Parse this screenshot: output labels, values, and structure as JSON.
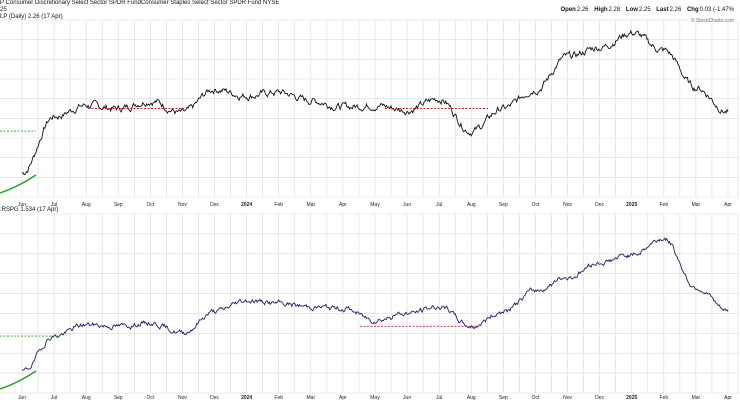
{
  "header": {
    "line1": "P Consumer Discretionary Select Sector SPDR FundConsumer Staples Select Sector SPDR Fund NYSE",
    "line2": "25",
    "panel1_label": "LP (Daily) 2.26 (17 Apr)",
    "panel2_label": ":RSPG 1.534 (17 Apr)",
    "watermark": "© StockCharts.com"
  },
  "ohlc": [
    {
      "label": "Open",
      "value": "2.26"
    },
    {
      "label": "High",
      "value": "2.28"
    },
    {
      "label": "Low",
      "value": "2.25"
    },
    {
      "label": "Last",
      "value": "2.26"
    },
    {
      "label": "Chg",
      "value": "0.03 (-1.47%"
    }
  ],
  "colors": {
    "price_line": "#111111",
    "ratio_line": "#1f1f6e",
    "red_dashed": "#cc2222",
    "green_dashed": "#22a022",
    "green_curve": "#22a022",
    "grid": "#d9d9d9"
  },
  "chart_data": [
    {
      "type": "line",
      "title": "LP (Daily) 2.26 (17 Apr)",
      "x": [
        "Jun",
        "Jul",
        "Aug",
        "Sep",
        "Oct",
        "Nov",
        "Dec",
        "2024",
        "Feb",
        "Mar",
        "Apr",
        "May",
        "Jun",
        "Jul",
        "Aug",
        "Sep",
        "Oct",
        "Nov",
        "Dec",
        "2025",
        "Feb",
        "Mar",
        "Apr"
      ],
      "x_tick_labels": [
        "Jun",
        "Jul",
        "Aug",
        "Sep",
        "Oct",
        "Nov",
        "Dec",
        "2024",
        "Feb",
        "Mar",
        "Apr",
        "May",
        "Jun",
        "Jul",
        "Aug",
        "Sep",
        "Oct",
        "Nov",
        "Dec",
        "2025",
        "Feb",
        "Mar",
        "Apr"
      ],
      "bold_tick_labels": [
        "2024",
        "2025"
      ],
      "series": [
        {
          "values": [
            0.1,
            0.45,
            0.52,
            0.5,
            0.55,
            0.47,
            0.62,
            0.58,
            0.6,
            0.55,
            0.51,
            0.52,
            0.49,
            0.56,
            0.36,
            0.5,
            0.62,
            0.82,
            0.88,
            0.97,
            0.86,
            0.63,
            0.48
          ]
        }
      ],
      "ylim": [
        0,
        1
      ],
      "grid": true
    },
    {
      "type": "line",
      "title": ":RSPG 1.534 (17 Apr)",
      "x": [
        "Jun",
        "Jul",
        "Aug",
        "Sep",
        "Oct",
        "Nov",
        "Dec",
        "2024",
        "Feb",
        "Mar",
        "Apr",
        "May",
        "Jun",
        "Jul",
        "Aug",
        "Sep",
        "Oct",
        "Nov",
        "Dec",
        "2025",
        "Feb",
        "Mar",
        "Apr"
      ],
      "x_tick_labels": [
        "Jun",
        "Jul",
        "Aug",
        "Sep",
        "Oct",
        "Nov",
        "Dec",
        "2024",
        "Feb",
        "Mar",
        "Apr",
        "May",
        "Jun",
        "Jul",
        "Aug",
        "Sep",
        "Oct",
        "Nov",
        "Dec",
        "2025",
        "Feb",
        "Mar",
        "Apr"
      ],
      "bold_tick_labels": [
        "2024",
        "2025"
      ],
      "series": [
        {
          "values": [
            0.08,
            0.3,
            0.37,
            0.36,
            0.38,
            0.32,
            0.45,
            0.52,
            0.5,
            0.48,
            0.47,
            0.4,
            0.44,
            0.48,
            0.36,
            0.45,
            0.58,
            0.66,
            0.75,
            0.8,
            0.9,
            0.6,
            0.45
          ]
        }
      ],
      "ylim": [
        0,
        1
      ],
      "grid": true
    }
  ]
}
